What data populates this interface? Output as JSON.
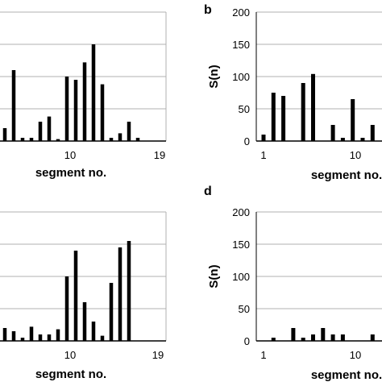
{
  "chart_data": [
    {
      "panel": "a",
      "type": "bar",
      "xlabel": "segment no.",
      "ylabel": "",
      "ylim": [
        0,
        200
      ],
      "yticks": [],
      "xticks": [
        "10",
        "19"
      ],
      "grid": true,
      "x": [
        1,
        2,
        3,
        4,
        5,
        6,
        7,
        8,
        9,
        10,
        11,
        12,
        13,
        14,
        15,
        16,
        17,
        18,
        19
      ],
      "values": [
        2,
        20,
        20,
        110,
        5,
        5,
        30,
        38,
        3,
        100,
        95,
        122,
        150,
        88,
        5,
        12,
        30,
        5,
        0
      ]
    },
    {
      "panel": "b",
      "type": "bar",
      "xlabel": "segment no.",
      "ylabel": "S(n)",
      "ylim": [
        0,
        200
      ],
      "yticks": [
        "0",
        "50",
        "100",
        "150",
        "200"
      ],
      "xticks": [
        "1",
        "10"
      ],
      "grid": true,
      "x": [
        1,
        2,
        3,
        4,
        5,
        6,
        7,
        8,
        9,
        10,
        11,
        12,
        13
      ],
      "values": [
        10,
        75,
        70,
        0,
        90,
        104,
        0,
        25,
        5,
        65,
        5,
        25,
        0
      ]
    },
    {
      "panel": "c",
      "type": "bar",
      "xlabel": "segment no.",
      "ylabel": "",
      "ylim": [
        0,
        200
      ],
      "yticks": [],
      "xticks": [
        "10",
        "19"
      ],
      "grid": true,
      "x": [
        1,
        2,
        3,
        4,
        5,
        6,
        7,
        8,
        9,
        10,
        11,
        12,
        13,
        14,
        15,
        16,
        17,
        18,
        19
      ],
      "values": [
        3,
        5,
        20,
        15,
        5,
        22,
        10,
        10,
        18,
        100,
        140,
        60,
        30,
        8,
        90,
        145,
        155,
        0,
        0
      ]
    },
    {
      "panel": "d",
      "type": "bar",
      "xlabel": "segment no.",
      "ylabel": "S(n)",
      "ylim": [
        0,
        200
      ],
      "yticks": [
        "0",
        "50",
        "100",
        "150",
        "200"
      ],
      "xticks": [
        "1",
        "10"
      ],
      "grid": true,
      "x": [
        1,
        2,
        3,
        4,
        5,
        6,
        7,
        8,
        9,
        10,
        11,
        12,
        13
      ],
      "values": [
        0,
        5,
        0,
        20,
        5,
        10,
        20,
        10,
        10,
        0,
        0,
        10,
        0
      ]
    }
  ]
}
